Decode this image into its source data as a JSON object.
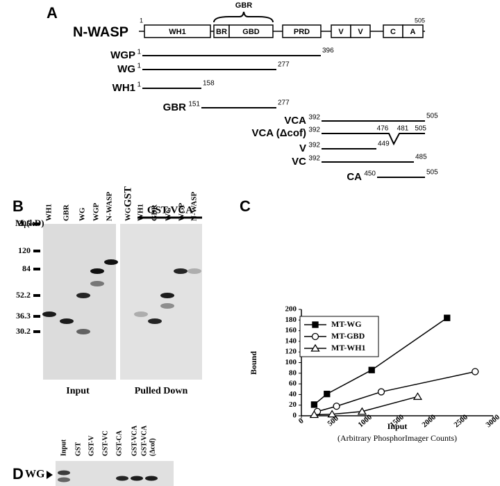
{
  "panel_a": {
    "letter": "A",
    "protein": "N-WASP",
    "brace_label": "GBR",
    "start": 1,
    "end": 505,
    "domains": [
      "WH1",
      "BR",
      "GBD",
      "PRD",
      "V",
      "V",
      "C",
      "A"
    ],
    "constructs": [
      {
        "name": "WGP",
        "start": 1,
        "end": 396
      },
      {
        "name": "WG",
        "start": 1,
        "end": 277
      },
      {
        "name": "WH1",
        "start": 1,
        "end": 158
      },
      {
        "name": "GBR",
        "start": 151,
        "end": 277
      },
      {
        "name": "VCA",
        "start": 392,
        "end": 505
      },
      {
        "name": "VCA (Δcof)",
        "start": 392,
        "gap": [
          476,
          481
        ],
        "end": 505
      },
      {
        "name": "V",
        "start": 392,
        "end": 449
      },
      {
        "name": "VC",
        "start": 392,
        "end": 485
      },
      {
        "name": "CA",
        "start": 450,
        "end": 505
      }
    ]
  },
  "panel_b": {
    "letter": "B",
    "mw_main": "M",
    "mw_sub": "r",
    "mw_unit": "(kD)",
    "markers": [
      205,
      120,
      84,
      52.2,
      36.3,
      30.2
    ],
    "input_lanes": [
      "WH1",
      "GBR",
      "WG",
      "WGP",
      "N-WASP"
    ],
    "control_header": "GST",
    "control_lanes": [
      "WG"
    ],
    "header": "GST-VCA",
    "pulled_lanes": [
      "WH1",
      "GBR",
      "WG",
      "WGP",
      "N-WASP"
    ],
    "input_label": "Input",
    "pulled_label": "Pulled Down"
  },
  "chart_data": {
    "type": "line",
    "letter": "C",
    "xlabel": "Input",
    "xlabel_note": "(Arbitrary PhosphorImager Counts)",
    "ylabel": "Bound",
    "xlim": [
      0,
      3000
    ],
    "ylim": [
      0,
      200
    ],
    "xticks": [
      0,
      500,
      1000,
      1500,
      2000,
      2500,
      3000
    ],
    "yticks": [
      0,
      20,
      40,
      60,
      80,
      100,
      120,
      140,
      160,
      180,
      200
    ],
    "legend": "upper left",
    "series": [
      {
        "name": "MT-WG",
        "color": "#000000",
        "marker": "square",
        "x": [
          200,
          400,
          1100,
          2280
        ],
        "values": [
          21,
          41,
          86,
          184
        ]
      },
      {
        "name": "MT-GBD",
        "color": "#000000",
        "marker": "circle",
        "x": [
          250,
          550,
          1250,
          2720
        ],
        "values": [
          8,
          18,
          45,
          83
        ]
      },
      {
        "name": "MT-WH1",
        "color": "#000000",
        "marker": "triangle",
        "x": [
          200,
          480,
          950,
          1820
        ],
        "values": [
          2,
          3,
          8,
          36
        ]
      }
    ]
  },
  "panel_d": {
    "letter": "D",
    "band_label": "WG",
    "lanes": [
      "Input",
      "GST",
      "GST-V",
      "GST-VC",
      "GST-CA",
      "GST-VCA",
      "GST-VCA"
    ],
    "lane_note": "(Δcof)"
  }
}
